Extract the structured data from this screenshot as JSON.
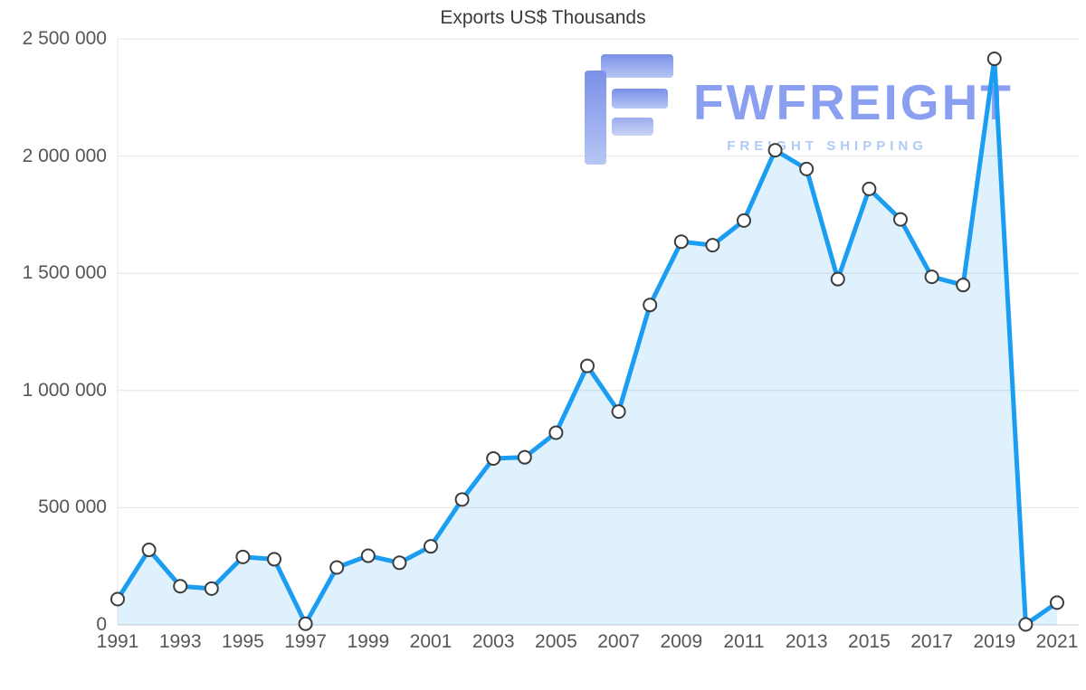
{
  "chart_data": {
    "type": "area",
    "title": "Exports US$ Thousands",
    "xlabel": "",
    "ylabel": "",
    "x": [
      1991,
      1992,
      1993,
      1994,
      1995,
      1996,
      1997,
      1998,
      1999,
      2000,
      2001,
      2002,
      2003,
      2004,
      2005,
      2006,
      2007,
      2008,
      2009,
      2010,
      2011,
      2012,
      2013,
      2014,
      2015,
      2016,
      2017,
      2018,
      2019,
      2020,
      2021
    ],
    "values": [
      110000,
      320000,
      165000,
      155000,
      290000,
      280000,
      5000,
      245000,
      295000,
      265000,
      335000,
      535000,
      710000,
      715000,
      820000,
      1105000,
      910000,
      1365000,
      1635000,
      1620000,
      1725000,
      2025000,
      1945000,
      1475000,
      1860000,
      1730000,
      1485000,
      1450000,
      2415000,
      2000,
      95000
    ],
    "ylim": [
      0,
      2500000
    ],
    "ytick_step": 500000,
    "ytick_labels": [
      "0",
      "500 000",
      "1 000 000",
      "1 500 000",
      "2 000 000",
      "2 500 000"
    ],
    "xtick_labels": [
      "1991",
      "1993",
      "1995",
      "1997",
      "1999",
      "2001",
      "2003",
      "2005",
      "2007",
      "2009",
      "2011",
      "2013",
      "2015",
      "2017",
      "2019",
      "2021"
    ],
    "grid": "horizontal",
    "legend": "none",
    "marker": "circle",
    "colors": {
      "line": "#1b9df2",
      "fill": "rgba(27,157,242,0.14)",
      "marker_fill": "#ffffff",
      "marker_stroke": "#3d3d3d",
      "grid": "#e4e4e4",
      "axis": "#c9c9c9",
      "title_text": "#3a3a3a",
      "tick_text": "#565656"
    }
  },
  "watermark": {
    "brand": "FWFREIGHT",
    "tagline": "FREIGHT SHIPPING",
    "brand_color": "#8b9ff0",
    "tagline_color": "#afcbf4",
    "icon": "fwfreight-logo-icon"
  }
}
